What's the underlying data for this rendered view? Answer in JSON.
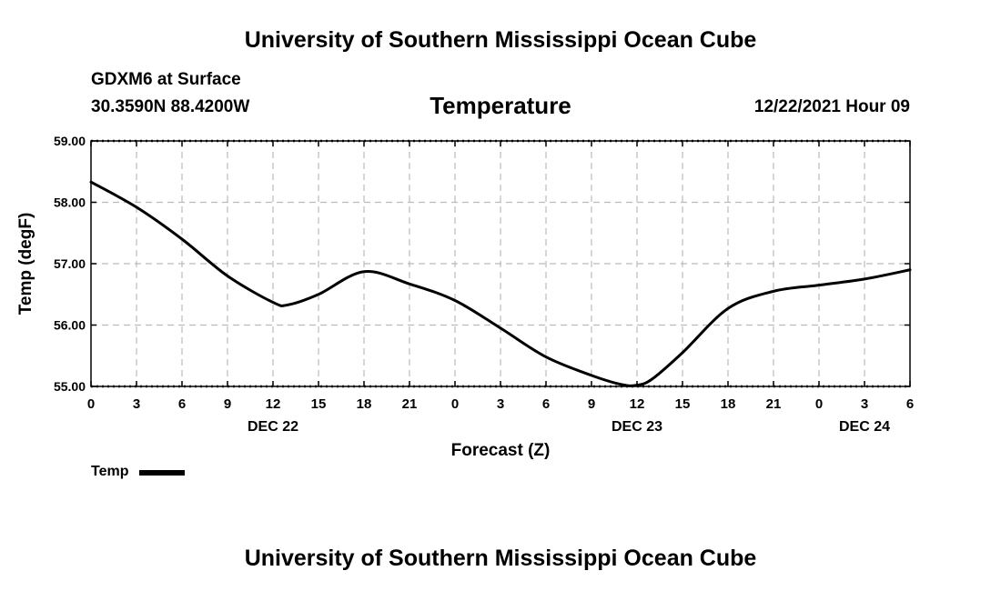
{
  "header": {
    "title": "University of Southern Mississippi Ocean Cube",
    "station": "GDXM6 at Surface",
    "coordinates": "30.3590N  88.4200W",
    "datetime": "12/22/2021 Hour 09"
  },
  "footer": {
    "title": "University of Southern Mississippi Ocean Cube"
  },
  "chart_data": {
    "type": "line",
    "title": "Temperature",
    "xlabel": "Forecast (Z)",
    "ylabel": "Temp (degF)",
    "xlim": [
      0,
      54
    ],
    "ylim": [
      55,
      59
    ],
    "x_unit": "hours since DEC 22 00Z",
    "y_ticks": [
      "55.00",
      "56.00",
      "57.00",
      "58.00",
      "59.00"
    ],
    "x_tick_labels": [
      "0",
      "3",
      "6",
      "9",
      "12",
      "15",
      "18",
      "21",
      "0",
      "3",
      "6",
      "9",
      "12",
      "15",
      "18",
      "21",
      "0",
      "3",
      "6"
    ],
    "date_labels": [
      {
        "text": "DEC 22",
        "at_hour": 12
      },
      {
        "text": "DEC 23",
        "at_hour": 36
      },
      {
        "text": "DEC 24",
        "at_hour": 51
      }
    ],
    "grid": true,
    "legend_position": "bottom-left",
    "series": [
      {
        "name": "Temp",
        "color": "#000000",
        "x": [
          0,
          3,
          6,
          9,
          12,
          13,
          15,
          18,
          21,
          24,
          27,
          30,
          33,
          35,
          36,
          37,
          39,
          42,
          45,
          48,
          51,
          54
        ],
        "values": [
          58.33,
          57.92,
          57.4,
          56.8,
          56.37,
          56.33,
          56.5,
          56.87,
          56.67,
          56.4,
          55.95,
          55.48,
          55.18,
          55.03,
          55.02,
          55.12,
          55.55,
          56.27,
          56.55,
          56.65,
          56.75,
          56.9
        ]
      }
    ]
  }
}
